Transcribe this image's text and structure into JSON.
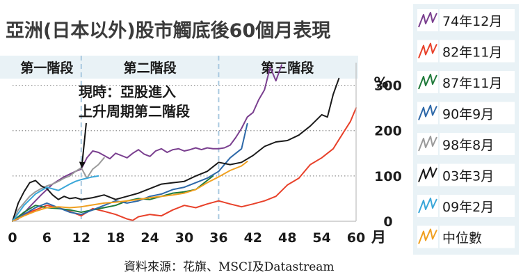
{
  "chart_data": {
    "type": "line",
    "title": "亞洲(日本以外)股市觸底後60個月表現",
    "xlabel": "月",
    "ylabel": "%",
    "x_ticks": [
      0,
      6,
      12,
      18,
      24,
      30,
      36,
      42,
      48,
      54,
      60
    ],
    "y_ticks": [
      0,
      100,
      200,
      300
    ],
    "xlim": [
      0,
      60
    ],
    "ylim": [
      0,
      350
    ],
    "grid": "horizontal dotted",
    "legend_position": "right",
    "phase_dividers": [
      12,
      36
    ],
    "phases": [
      {
        "label": "第一階段",
        "x": 6
      },
      {
        "label": "第二階段",
        "x": 24
      },
      {
        "label": "第三階段",
        "x": 48
      }
    ],
    "annotation": {
      "lines": [
        "現時：亞股進入",
        "上升周期第二階段"
      ],
      "points_to": [
        12,
        120
      ]
    },
    "series": [
      {
        "name": "74年12月",
        "color": "#7a3f8f",
        "points": [
          [
            0,
            0
          ],
          [
            1,
            5
          ],
          [
            2,
            18
          ],
          [
            3,
            32
          ],
          [
            4,
            45
          ],
          [
            5,
            58
          ],
          [
            6,
            70
          ],
          [
            7,
            82
          ],
          [
            8,
            90
          ],
          [
            9,
            98
          ],
          [
            10,
            104
          ],
          [
            11,
            110
          ],
          [
            12,
            115
          ],
          [
            13,
            140
          ],
          [
            14,
            155
          ],
          [
            15,
            152
          ],
          [
            16,
            145
          ],
          [
            17,
            138
          ],
          [
            18,
            150
          ],
          [
            19,
            145
          ],
          [
            20,
            140
          ],
          [
            21,
            150
          ],
          [
            22,
            158
          ],
          [
            23,
            148
          ],
          [
            24,
            143
          ],
          [
            25,
            155
          ],
          [
            26,
            160
          ],
          [
            27,
            152
          ],
          [
            28,
            158
          ],
          [
            29,
            160
          ],
          [
            30,
            155
          ],
          [
            31,
            158
          ],
          [
            32,
            162
          ],
          [
            33,
            158
          ],
          [
            34,
            162
          ],
          [
            35,
            160
          ],
          [
            36,
            160
          ],
          [
            37,
            162
          ],
          [
            38,
            168
          ],
          [
            39,
            185
          ],
          [
            40,
            205
          ],
          [
            41,
            230
          ],
          [
            42,
            240
          ],
          [
            43,
            268
          ],
          [
            44,
            290
          ],
          [
            45,
            340
          ],
          [
            46,
            310
          ],
          [
            47,
            345
          ]
        ]
      },
      {
        "name": "82年11月",
        "color": "#e8412a",
        "points": [
          [
            0,
            0
          ],
          [
            2,
            15
          ],
          [
            4,
            25
          ],
          [
            6,
            35
          ],
          [
            8,
            30
          ],
          [
            10,
            22
          ],
          [
            12,
            12
          ],
          [
            14,
            28
          ],
          [
            16,
            22
          ],
          [
            18,
            15
          ],
          [
            20,
            5
          ],
          [
            21,
            2
          ],
          [
            22,
            10
          ],
          [
            24,
            15
          ],
          [
            26,
            12
          ],
          [
            28,
            25
          ],
          [
            30,
            35
          ],
          [
            32,
            30
          ],
          [
            34,
            38
          ],
          [
            36,
            45
          ],
          [
            38,
            38
          ],
          [
            40,
            32
          ],
          [
            42,
            38
          ],
          [
            44,
            45
          ],
          [
            46,
            55
          ],
          [
            48,
            80
          ],
          [
            50,
            95
          ],
          [
            52,
            125
          ],
          [
            54,
            140
          ],
          [
            56,
            160
          ],
          [
            58,
            200
          ],
          [
            59,
            220
          ],
          [
            60,
            250
          ]
        ]
      },
      {
        "name": "87年11月",
        "color": "#1f7a3a",
        "points": [
          [
            0,
            0
          ],
          [
            2,
            20
          ],
          [
            4,
            35
          ],
          [
            6,
            30
          ],
          [
            8,
            28
          ],
          [
            10,
            25
          ],
          [
            12,
            20
          ],
          [
            14,
            25
          ],
          [
            16,
            30
          ],
          [
            18,
            35
          ],
          [
            20,
            45
          ],
          [
            22,
            50
          ],
          [
            24,
            48
          ],
          [
            26,
            55
          ],
          [
            28,
            62
          ],
          [
            30,
            65
          ],
          [
            32,
            70
          ],
          [
            34,
            90
          ],
          [
            35,
            100
          ]
        ]
      },
      {
        "name": "90年9月",
        "color": "#2d68a8",
        "points": [
          [
            0,
            0
          ],
          [
            2,
            15
          ],
          [
            4,
            30
          ],
          [
            6,
            40
          ],
          [
            8,
            30
          ],
          [
            10,
            20
          ],
          [
            12,
            15
          ],
          [
            14,
            25
          ],
          [
            16,
            35
          ],
          [
            18,
            45
          ],
          [
            20,
            40
          ],
          [
            22,
            45
          ],
          [
            24,
            55
          ],
          [
            26,
            60
          ],
          [
            28,
            70
          ],
          [
            30,
            75
          ],
          [
            32,
            85
          ],
          [
            34,
            95
          ],
          [
            36,
            110
          ],
          [
            38,
            140
          ],
          [
            40,
            160
          ],
          [
            41,
            215
          ]
        ]
      },
      {
        "name": "98年8月",
        "color": "#9a9a9a",
        "points": [
          [
            0,
            0
          ],
          [
            1,
            25
          ],
          [
            2,
            40
          ],
          [
            3,
            55
          ],
          [
            4,
            65
          ],
          [
            5,
            72
          ],
          [
            6,
            78
          ],
          [
            7,
            82
          ],
          [
            8,
            88
          ],
          [
            9,
            95
          ],
          [
            10,
            100
          ],
          [
            11,
            110
          ],
          [
            12,
            118
          ],
          [
            13,
            95
          ],
          [
            14,
            115
          ],
          [
            15,
            125
          ],
          [
            16,
            140
          ]
        ]
      },
      {
        "name": "03年3月",
        "color": "#1a1a1a",
        "points": [
          [
            0,
            0
          ],
          [
            1,
            40
          ],
          [
            2,
            65
          ],
          [
            3,
            85
          ],
          [
            4,
            90
          ],
          [
            5,
            78
          ],
          [
            6,
            72
          ],
          [
            7,
            58
          ],
          [
            8,
            48
          ],
          [
            9,
            55
          ],
          [
            10,
            50
          ],
          [
            11,
            52
          ],
          [
            12,
            48
          ],
          [
            14,
            52
          ],
          [
            16,
            58
          ],
          [
            18,
            48
          ],
          [
            20,
            55
          ],
          [
            22,
            62
          ],
          [
            24,
            72
          ],
          [
            26,
            82
          ],
          [
            28,
            85
          ],
          [
            30,
            88
          ],
          [
            32,
            100
          ],
          [
            34,
            110
          ],
          [
            36,
            130
          ],
          [
            38,
            125
          ],
          [
            40,
            130
          ],
          [
            42,
            145
          ],
          [
            44,
            165
          ],
          [
            46,
            175
          ],
          [
            48,
            178
          ],
          [
            50,
            190
          ],
          [
            52,
            210
          ],
          [
            54,
            235
          ],
          [
            55,
            230
          ],
          [
            56,
            280
          ],
          [
            57,
            315
          ]
        ]
      },
      {
        "name": "09年2月",
        "color": "#3aa7d9",
        "points": [
          [
            0,
            0
          ],
          [
            2,
            35
          ],
          [
            4,
            60
          ],
          [
            6,
            75
          ],
          [
            8,
            68
          ],
          [
            10,
            82
          ],
          [
            11,
            88
          ],
          [
            12,
            92
          ],
          [
            13,
            95
          ],
          [
            14,
            98
          ],
          [
            15,
            100
          ]
        ]
      },
      {
        "name": "中位數",
        "color": "#f0a020",
        "points": [
          [
            0,
            0
          ],
          [
            2,
            12
          ],
          [
            4,
            22
          ],
          [
            6,
            30
          ],
          [
            8,
            32
          ],
          [
            10,
            30
          ],
          [
            12,
            32
          ],
          [
            14,
            36
          ],
          [
            16,
            40
          ],
          [
            18,
            42
          ],
          [
            20,
            45
          ],
          [
            22,
            48
          ],
          [
            24,
            52
          ],
          [
            26,
            55
          ],
          [
            28,
            58
          ],
          [
            30,
            62
          ],
          [
            32,
            70
          ],
          [
            34,
            85
          ],
          [
            36,
            98
          ],
          [
            38,
            112
          ],
          [
            40,
            122
          ],
          [
            41,
            132
          ]
        ]
      }
    ]
  },
  "source": "資料來源：花旗、MSCI及Datastream"
}
